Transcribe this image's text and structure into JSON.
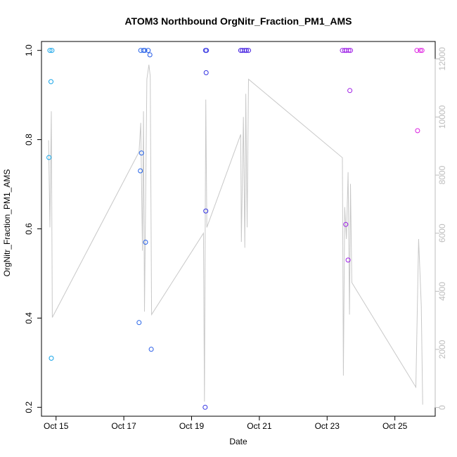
{
  "chart_data": {
    "type": "scatter",
    "title": "ATOM3 Northbound OrgNitr_Fraction_PM1_AMS",
    "xlabel": "Date",
    "ylabel": "OrgNitr_Fraction_PM1_AMS",
    "x_ticks": [
      "Oct 15",
      "Oct 17",
      "Oct 19",
      "Oct 21",
      "Oct 23",
      "Oct 25"
    ],
    "y_ticks": [
      "0.2",
      "0.4",
      "0.6",
      "0.8",
      "1.0"
    ],
    "y2_ticks": [
      "0",
      "2000",
      "4000",
      "6000",
      "8000",
      "10000",
      "12000"
    ],
    "xlim": [
      14.57,
      26.19
    ],
    "ylim": [
      0.18,
      1.02
    ],
    "y2lim": [
      -300,
      12600
    ],
    "grid": false,
    "series": [
      {
        "role": "points",
        "color_gradient": [
          "#17a9e8",
          "#2563e8",
          "#3b1ee0",
          "#8e1ee8",
          "#e21ee0"
        ],
        "points": [
          {
            "x": 14.79,
            "y": 0.76
          },
          {
            "x": 14.82,
            "y": 1.0
          },
          {
            "x": 14.85,
            "y": 0.93
          },
          {
            "x": 14.86,
            "y": 0.31
          },
          {
            "x": 14.88,
            "y": 1.0
          },
          {
            "x": 17.45,
            "y": 0.39
          },
          {
            "x": 17.49,
            "y": 0.73
          },
          {
            "x": 17.5,
            "y": 1.0
          },
          {
            "x": 17.52,
            "y": 0.77
          },
          {
            "x": 17.58,
            "y": 1.0
          },
          {
            "x": 17.62,
            "y": 1.0
          },
          {
            "x": 17.64,
            "y": 0.57
          },
          {
            "x": 17.72,
            "y": 1.0
          },
          {
            "x": 17.77,
            "y": 0.99
          },
          {
            "x": 17.81,
            "y": 0.33
          },
          {
            "x": 19.4,
            "y": 0.2
          },
          {
            "x": 19.41,
            "y": 1.0
          },
          {
            "x": 19.42,
            "y": 0.64
          },
          {
            "x": 19.43,
            "y": 0.95
          },
          {
            "x": 19.44,
            "y": 1.0
          },
          {
            "x": 20.45,
            "y": 1.0
          },
          {
            "x": 20.5,
            "y": 1.0
          },
          {
            "x": 20.57,
            "y": 1.0
          },
          {
            "x": 20.62,
            "y": 1.0
          },
          {
            "x": 20.68,
            "y": 1.0
          },
          {
            "x": 23.45,
            "y": 1.0
          },
          {
            "x": 23.52,
            "y": 1.0
          },
          {
            "x": 23.55,
            "y": 0.61
          },
          {
            "x": 23.57,
            "y": 1.0
          },
          {
            "x": 23.62,
            "y": 0.53
          },
          {
            "x": 23.64,
            "y": 1.0
          },
          {
            "x": 23.67,
            "y": 0.91
          },
          {
            "x": 23.69,
            "y": 1.0
          },
          {
            "x": 25.65,
            "y": 1.0
          },
          {
            "x": 25.67,
            "y": 0.82
          },
          {
            "x": 25.75,
            "y": 1.0
          },
          {
            "x": 25.8,
            "y": 1.0
          }
        ]
      },
      {
        "role": "line_secondary_axis",
        "color": "#c8c8c8",
        "points": [
          {
            "x": 14.78,
            "y": 9200
          },
          {
            "x": 14.82,
            "y": 6200
          },
          {
            "x": 14.86,
            "y": 10200
          },
          {
            "x": 14.89,
            "y": 3100
          },
          {
            "x": 17.45,
            "y": 8800
          },
          {
            "x": 17.5,
            "y": 9800
          },
          {
            "x": 17.55,
            "y": 5400
          },
          {
            "x": 17.58,
            "y": 10200
          },
          {
            "x": 17.61,
            "y": 3300
          },
          {
            "x": 17.68,
            "y": 11300
          },
          {
            "x": 17.74,
            "y": 11800
          },
          {
            "x": 17.78,
            "y": 11400
          },
          {
            "x": 17.82,
            "y": 3200
          },
          {
            "x": 19.35,
            "y": 6000
          },
          {
            "x": 19.38,
            "y": 200
          },
          {
            "x": 19.42,
            "y": 10600
          },
          {
            "x": 19.45,
            "y": 6200
          },
          {
            "x": 20.45,
            "y": 9400
          },
          {
            "x": 20.47,
            "y": 5700
          },
          {
            "x": 20.53,
            "y": 10000
          },
          {
            "x": 20.57,
            "y": 5500
          },
          {
            "x": 20.6,
            "y": 10800
          },
          {
            "x": 20.64,
            "y": 6200
          },
          {
            "x": 20.68,
            "y": 11300
          },
          {
            "x": 23.45,
            "y": 8600
          },
          {
            "x": 23.48,
            "y": 1100
          },
          {
            "x": 23.52,
            "y": 6900
          },
          {
            "x": 23.57,
            "y": 5800
          },
          {
            "x": 23.62,
            "y": 8100
          },
          {
            "x": 23.66,
            "y": 3200
          },
          {
            "x": 23.69,
            "y": 7700
          },
          {
            "x": 23.73,
            "y": 4300
          },
          {
            "x": 25.62,
            "y": 700
          },
          {
            "x": 25.7,
            "y": 5800
          },
          {
            "x": 25.78,
            "y": 3500
          },
          {
            "x": 25.82,
            "y": 100
          }
        ]
      }
    ]
  }
}
